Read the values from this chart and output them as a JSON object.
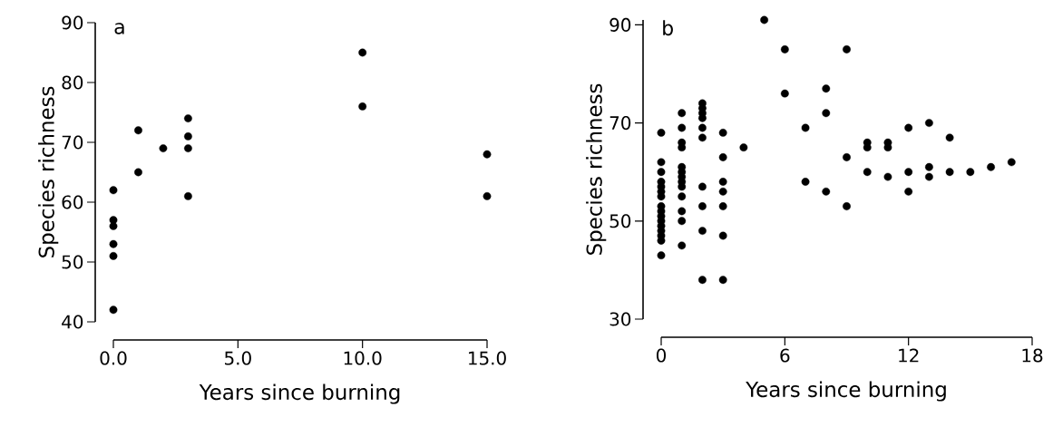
{
  "chart_data": [
    {
      "type": "scatter",
      "xlabel": "Years since burning",
      "ylabel": "Species richness",
      "annotations": [
        "a"
      ],
      "x": [
        0,
        0,
        0,
        0,
        0,
        0,
        1,
        1,
        2,
        3,
        3,
        3,
        3,
        10,
        10,
        15,
        15
      ],
      "values": [
        62,
        57,
        56,
        53,
        51,
        42,
        72,
        65,
        69,
        74,
        71,
        69,
        61,
        85,
        76,
        68,
        61
      ],
      "color": "#000000",
      "xlim": [
        0,
        15
      ],
      "ylim": [
        40,
        90
      ],
      "xticks": [
        {
          "value": 0,
          "label": "0.0"
        },
        {
          "value": 5,
          "label": "5.0"
        },
        {
          "value": 10,
          "label": "10.0"
        },
        {
          "value": 15,
          "label": "15.0"
        }
      ],
      "yticks": [
        40,
        50,
        60,
        70,
        80,
        90
      ]
    },
    {
      "type": "scatter",
      "xlabel": "Years since burning",
      "ylabel": "Species richness",
      "annotations": [
        "b"
      ],
      "x": [
        0,
        0,
        0,
        0,
        0,
        0,
        0,
        0,
        0,
        0,
        0,
        0,
        0,
        0,
        0,
        0,
        1,
        1,
        1,
        1,
        1,
        1,
        1,
        1,
        1,
        1,
        1,
        1,
        1,
        2,
        2,
        2,
        2,
        2,
        2,
        2,
        2,
        2,
        2,
        3,
        3,
        3,
        3,
        3,
        3,
        3,
        4,
        5,
        6,
        6,
        7,
        7,
        8,
        8,
        8,
        9,
        9,
        9,
        10,
        10,
        10,
        11,
        11,
        11,
        12,
        12,
        12,
        13,
        13,
        13,
        14,
        14,
        15,
        16,
        17
      ],
      "values": [
        68,
        62,
        60,
        58,
        57,
        56,
        55,
        53,
        52,
        51,
        50,
        49,
        48,
        47,
        46,
        43,
        72,
        69,
        66,
        65,
        61,
        60,
        59,
        58,
        57,
        55,
        52,
        50,
        45,
        74,
        73,
        72,
        71,
        69,
        67,
        57,
        53,
        48,
        38,
        68,
        63,
        58,
        56,
        53,
        47,
        38,
        65,
        91,
        85,
        76,
        69,
        58,
        77,
        72,
        56,
        85,
        63,
        53,
        66,
        65,
        60,
        66,
        65,
        59,
        69,
        60,
        56,
        70,
        61,
        59,
        67,
        60,
        60,
        61,
        62
      ],
      "color": "#000000",
      "xlim": [
        0,
        18
      ],
      "ylim": [
        30,
        91
      ],
      "xticks": [
        0,
        6,
        12,
        18
      ],
      "yticks": [
        30,
        50,
        70,
        90
      ]
    }
  ]
}
